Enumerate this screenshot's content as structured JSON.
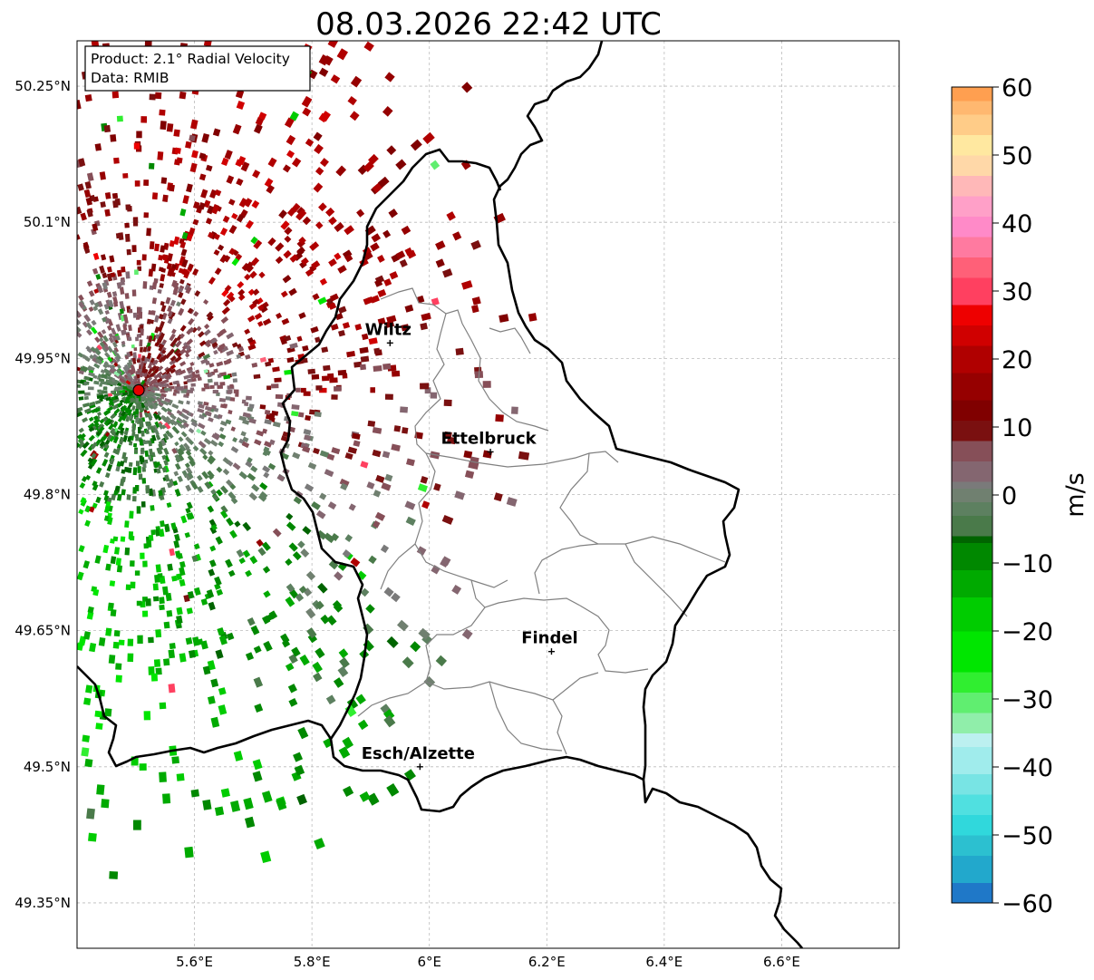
{
  "title": "08.03.2026 22:42 UTC",
  "info_box": {
    "product": "Product: 2.1° Radial Velocity",
    "data_source": "Data: RMIB"
  },
  "map": {
    "lon_range": [
      5.4,
      6.8
    ],
    "lat_range": [
      49.3,
      50.3
    ],
    "lat_ticks": [
      {
        "value": 50.25,
        "label": "50.25°N"
      },
      {
        "value": 50.1,
        "label": "50.1°N"
      },
      {
        "value": 49.95,
        "label": "49.95°N"
      },
      {
        "value": 49.8,
        "label": "49.8°N"
      },
      {
        "value": 49.65,
        "label": "49.65°N"
      },
      {
        "value": 49.5,
        "label": "49.5°N"
      },
      {
        "value": 49.35,
        "label": "49.35°N"
      }
    ],
    "lon_ticks": [
      {
        "value": 5.6,
        "label": "5.6°E"
      },
      {
        "value": 5.8,
        "label": "5.8°E"
      },
      {
        "value": 6.0,
        "label": "6°E"
      },
      {
        "value": 6.2,
        "label": "6.2°E"
      },
      {
        "value": 6.4,
        "label": "6.4°E"
      },
      {
        "value": 6.6,
        "label": "6.6°E"
      }
    ],
    "grid": true,
    "radar_site": {
      "lon": 5.505,
      "lat": 49.915,
      "color": "#e60000"
    },
    "cities": [
      {
        "name": "Wiltz",
        "lon": 5.933,
        "lat": 49.967
      },
      {
        "name": "Ettelbruck",
        "lon": 6.104,
        "lat": 49.847
      },
      {
        "name": "Findel",
        "lon": 6.208,
        "lat": 49.627
      },
      {
        "name": "Esch/Alzette",
        "lon": 5.984,
        "lat": 49.5
      }
    ],
    "border_color": "#000000",
    "canton_color": "#808080"
  },
  "colorbar": {
    "label": "m/s",
    "min": -60,
    "max": 60,
    "ticks": [
      {
        "value": 60,
        "label": "60"
      },
      {
        "value": 50,
        "label": "50"
      },
      {
        "value": 40,
        "label": "40"
      },
      {
        "value": 30,
        "label": "30"
      },
      {
        "value": 20,
        "label": "20"
      },
      {
        "value": 10,
        "label": "10"
      },
      {
        "value": 0,
        "label": "0"
      },
      {
        "value": -10,
        "label": "−10"
      },
      {
        "value": -20,
        "label": "−20"
      },
      {
        "value": -30,
        "label": "−30"
      },
      {
        "value": -40,
        "label": "−40"
      },
      {
        "value": -50,
        "label": "−50"
      },
      {
        "value": -60,
        "label": "−60"
      }
    ],
    "stops": [
      {
        "from": -60,
        "color": "#1f78c8"
      },
      {
        "from": -57,
        "color": "#22a8cc"
      },
      {
        "from": -53,
        "color": "#2cc0d0"
      },
      {
        "from": -50,
        "color": "#30d8dc"
      },
      {
        "from": -47,
        "color": "#50e0e0"
      },
      {
        "from": -44,
        "color": "#78e4e4"
      },
      {
        "from": -41,
        "color": "#a0ecec"
      },
      {
        "from": -37,
        "color": "#bcf0f0"
      },
      {
        "from": -35,
        "color": "#90eeaa"
      },
      {
        "from": -32,
        "color": "#60ee70"
      },
      {
        "from": -29,
        "color": "#30ee30"
      },
      {
        "from": -26,
        "color": "#00e600"
      },
      {
        "from": -20,
        "color": "#00cc00"
      },
      {
        "from": -15,
        "color": "#00aa00"
      },
      {
        "from": -11,
        "color": "#008800"
      },
      {
        "from": -7,
        "color": "#006400"
      },
      {
        "from": -6,
        "color": "#4a7a4a"
      },
      {
        "from": -3,
        "color": "#5d8060"
      },
      {
        "from": -1,
        "color": "#708070"
      },
      {
        "from": 1,
        "color": "#7a7a7a"
      },
      {
        "from": 2,
        "color": "#846670"
      },
      {
        "from": 5,
        "color": "#864f58"
      },
      {
        "from": 8,
        "color": "#7a1010"
      },
      {
        "from": 11,
        "color": "#800000"
      },
      {
        "from": 14,
        "color": "#960000"
      },
      {
        "from": 18,
        "color": "#b00000"
      },
      {
        "from": 22,
        "color": "#d00000"
      },
      {
        "from": 25,
        "color": "#ee0000"
      },
      {
        "from": 28,
        "color": "#ff4060"
      },
      {
        "from": 32,
        "color": "#ff6078"
      },
      {
        "from": 35,
        "color": "#ff7aa0"
      },
      {
        "from": 38,
        "color": "#ff8ac8"
      },
      {
        "from": 41,
        "color": "#ffa0c8"
      },
      {
        "from": 44,
        "color": "#ffb8b8"
      },
      {
        "from": 47,
        "color": "#ffd8a8"
      },
      {
        "from": 50,
        "color": "#ffe8a0"
      },
      {
        "from": 53,
        "color": "#ffcc88"
      },
      {
        "from": 56,
        "color": "#ffb870"
      },
      {
        "from": 58,
        "color": "#ff9f50"
      }
    ]
  }
}
